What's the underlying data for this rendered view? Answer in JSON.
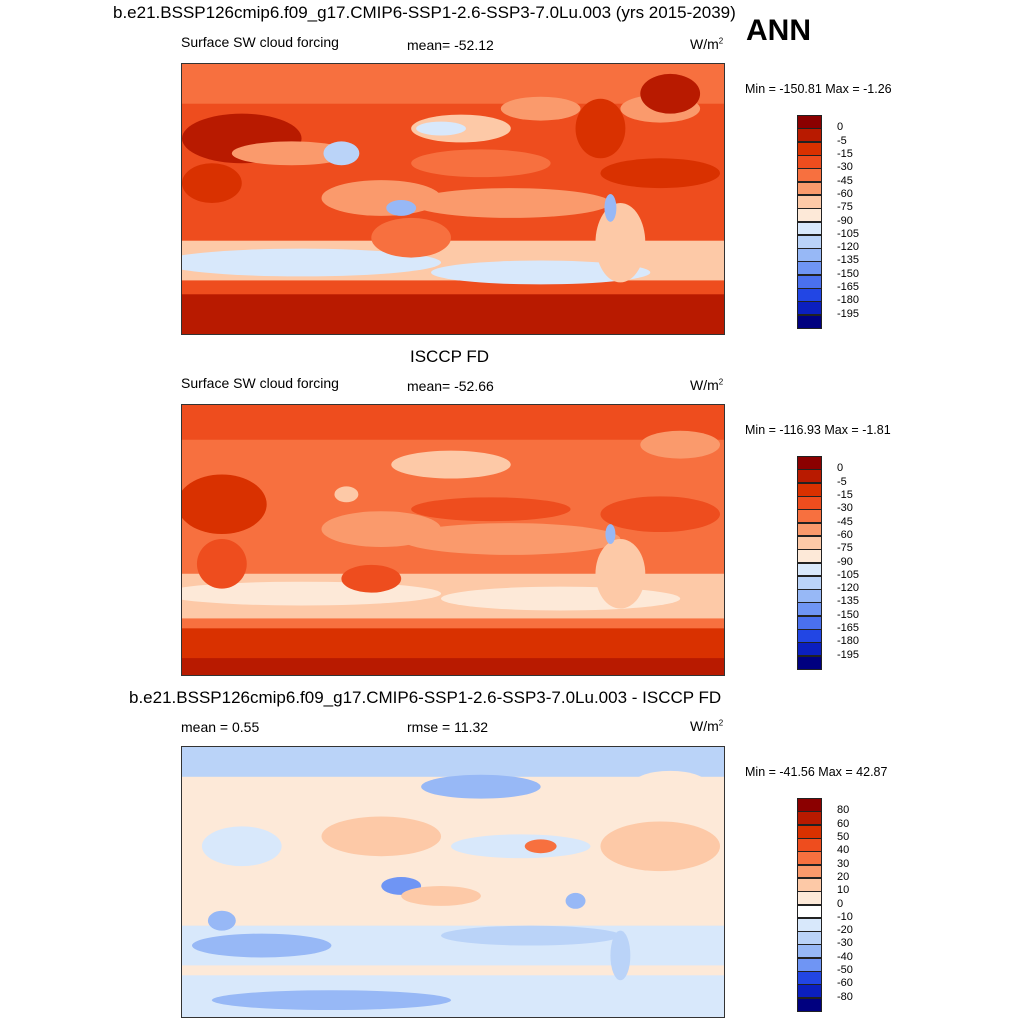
{
  "header": {
    "title": "b.e21.BSSP126cmip6.f09_g17.CMIP6-SSP1-2.6-SSP3-7.0Lu.003 (yrs 2015-2039)",
    "season": "ANN"
  },
  "chart_data": [
    {
      "type": "heatmap",
      "title": "",
      "variable": "Surface SW cloud forcing",
      "stat_label": "mean= -52.12",
      "units": "W/m",
      "units_sup": "2",
      "minmax": "Min = -150.81 Max =  -1.26",
      "mean": -52.12,
      "min": -150.81,
      "max": -1.26,
      "colorbar": {
        "labels": [
          "0",
          "-5",
          "-15",
          "-30",
          "-45",
          "-60",
          "-75",
          "-90",
          "-105",
          "-120",
          "-135",
          "-150",
          "-165",
          "-180",
          "-195"
        ],
        "colors": [
          "#8b0000",
          "#b81a00",
          "#d93100",
          "#ee4d1e",
          "#f7703f",
          "#fa9a6c",
          "#fdc9a7",
          "#fde9d8",
          "#d8e8fb",
          "#bad3f8",
          "#97b8f6",
          "#6f95f4",
          "#4a70ee",
          "#2246e4",
          "#0b1fbf",
          "#00007f"
        ]
      }
    },
    {
      "type": "heatmap",
      "title": "ISCCP FD",
      "variable": "Surface SW cloud forcing",
      "stat_label": "mean= -52.66",
      "units": "W/m",
      "units_sup": "2",
      "minmax": "Min = -116.93 Max =  -1.81",
      "mean": -52.66,
      "min": -116.93,
      "max": -1.81,
      "colorbar": {
        "labels": [
          "0",
          "-5",
          "-15",
          "-30",
          "-45",
          "-60",
          "-75",
          "-90",
          "-105",
          "-120",
          "-135",
          "-150",
          "-165",
          "-180",
          "-195"
        ],
        "colors": [
          "#8b0000",
          "#b81a00",
          "#d93100",
          "#ee4d1e",
          "#f7703f",
          "#fa9a6c",
          "#fdc9a7",
          "#fde9d8",
          "#d8e8fb",
          "#bad3f8",
          "#97b8f6",
          "#6f95f4",
          "#4a70ee",
          "#2246e4",
          "#0b1fbf",
          "#00007f"
        ]
      }
    },
    {
      "type": "heatmap",
      "title": "b.e21.BSSP126cmip6.f09_g17.CMIP6-SSP1-2.6-SSP3-7.0Lu.003 - ISCCP FD",
      "mean_label": "mean =   0.55",
      "stat_label": "rmse =  11.32",
      "units": "W/m",
      "units_sup": "2",
      "minmax": "Min = -41.56 Max =  42.87",
      "mean": 0.55,
      "rmse": 11.32,
      "min": -41.56,
      "max": 42.87,
      "colorbar": {
        "labels": [
          "80",
          "60",
          "50",
          "40",
          "30",
          "20",
          "10",
          "0",
          "-10",
          "-20",
          "-30",
          "-40",
          "-50",
          "-60",
          "-80"
        ],
        "colors": [
          "#8b0000",
          "#b81a00",
          "#d93100",
          "#ee4d1e",
          "#f7703f",
          "#fa9a6c",
          "#fdc9a7",
          "#fde9d8",
          "#ffffff",
          "#d8e8fb",
          "#bad3f8",
          "#97b8f6",
          "#6f95f4",
          "#2246e4",
          "#0b1fbf",
          "#00007f"
        ]
      }
    }
  ]
}
